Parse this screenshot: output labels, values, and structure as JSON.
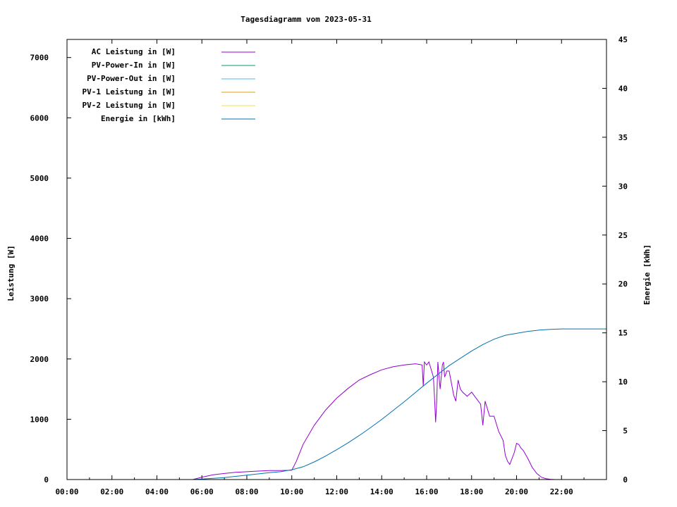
{
  "chart_data": {
    "type": "line",
    "title": "Tagesdiagramm vom 2023-05-31",
    "ylabel": "Leistung [W]",
    "y2label": "Energie [kWh]",
    "xlim": [
      0,
      24
    ],
    "ylim": [
      0,
      7300
    ],
    "y2lim": [
      0,
      45
    ],
    "x_ticks": [
      "00:00",
      "02:00",
      "04:00",
      "06:00",
      "08:00",
      "10:00",
      "12:00",
      "14:00",
      "16:00",
      "18:00",
      "20:00",
      "22:00"
    ],
    "y_ticks": [
      0,
      1000,
      2000,
      3000,
      4000,
      5000,
      6000,
      7000
    ],
    "y2_ticks": [
      0,
      5,
      10,
      15,
      20,
      25,
      30,
      35,
      40,
      45
    ],
    "grid": false,
    "legend_position": "top-left",
    "series": [
      {
        "name": "AC Leistung in [W]",
        "color": "#9400d3",
        "axis": "left",
        "x": [
          5.6,
          6.0,
          6.5,
          7.0,
          7.5,
          8.0,
          8.5,
          9.0,
          9.5,
          10.0,
          10.2,
          10.5,
          11.0,
          11.5,
          12.0,
          12.5,
          13.0,
          13.5,
          14.0,
          14.5,
          15.0,
          15.5,
          15.8,
          15.85,
          15.9,
          16.0,
          16.1,
          16.3,
          16.35,
          16.4,
          16.45,
          16.5,
          16.6,
          16.7,
          16.75,
          16.8,
          16.9,
          17.0,
          17.2,
          17.3,
          17.4,
          17.5,
          17.6,
          17.8,
          18.0,
          18.2,
          18.4,
          18.5,
          18.6,
          18.8,
          19.0,
          19.2,
          19.4,
          19.5,
          19.6,
          19.7,
          19.8,
          19.9,
          20.0,
          20.1,
          20.2,
          20.3,
          20.5,
          20.7,
          20.9,
          21.1,
          21.3,
          21.5,
          21.7,
          21.9,
          22.0
        ],
        "y": [
          0,
          40,
          80,
          100,
          120,
          130,
          140,
          150,
          150,
          155,
          300,
          580,
          900,
          1150,
          1350,
          1510,
          1650,
          1740,
          1820,
          1870,
          1900,
          1920,
          1900,
          1550,
          1950,
          1900,
          1950,
          1700,
          1350,
          950,
          1300,
          1950,
          1500,
          1900,
          1950,
          1700,
          1800,
          1800,
          1400,
          1300,
          1650,
          1500,
          1450,
          1380,
          1450,
          1350,
          1250,
          900,
          1300,
          1050,
          1050,
          800,
          650,
          400,
          300,
          250,
          350,
          450,
          600,
          580,
          520,
          480,
          350,
          200,
          100,
          40,
          15,
          5,
          0,
          0,
          0
        ]
      },
      {
        "name": "PV-Power-In in [W]",
        "color": "#009e73",
        "axis": "left",
        "x": [],
        "y": []
      },
      {
        "name": "PV-Power-Out in [W]",
        "color": "#56b4e9",
        "axis": "left",
        "x": [],
        "y": []
      },
      {
        "name": "PV-1 Leistung in [W]",
        "color": "#e69f00",
        "axis": "left",
        "x": [],
        "y": []
      },
      {
        "name": "PV-2 Leistung in [W]",
        "color": "#f0e442",
        "axis": "left",
        "x": [],
        "y": []
      },
      {
        "name": "Energie in [kWh]",
        "color": "#0072b2",
        "axis": "right",
        "x": [
          5.6,
          6.0,
          7.0,
          8.0,
          9.0,
          9.5,
          10.0,
          10.5,
          11.0,
          11.5,
          12.0,
          12.5,
          13.0,
          13.5,
          14.0,
          14.5,
          15.0,
          15.5,
          16.0,
          16.5,
          17.0,
          17.5,
          18.0,
          18.5,
          19.0,
          19.5,
          20.0,
          20.5,
          21.0,
          21.5,
          22.0,
          23.0,
          24.0
        ],
        "y": [
          0,
          0.05,
          0.2,
          0.45,
          0.7,
          0.8,
          1.0,
          1.3,
          1.8,
          2.4,
          3.05,
          3.75,
          4.5,
          5.3,
          6.15,
          7.05,
          7.95,
          8.9,
          9.85,
          10.75,
          11.65,
          12.4,
          13.15,
          13.8,
          14.35,
          14.75,
          14.95,
          15.15,
          15.28,
          15.35,
          15.4,
          15.4,
          15.4
        ]
      }
    ]
  }
}
